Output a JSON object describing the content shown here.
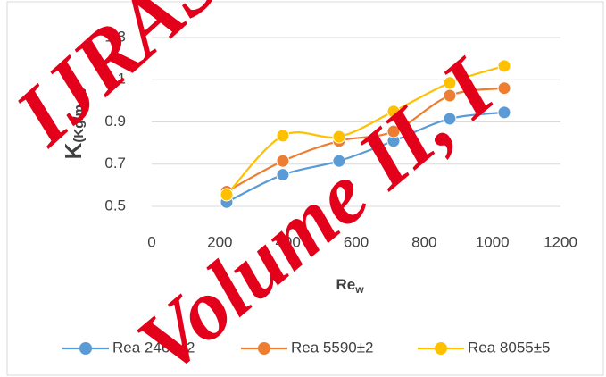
{
  "chart_data": {
    "type": "line",
    "ylabel_parts": [
      "K",
      "(Kg/m",
      "2",
      "s)"
    ],
    "xlabel_parts": [
      "Re",
      "w"
    ],
    "x": [
      220,
      385,
      550,
      710,
      875,
      1035
    ],
    "series": [
      {
        "name": "Rea 2460±2",
        "color": "#5b9bd5",
        "values": [
          0.52,
          0.65,
          0.715,
          0.81,
          0.915,
          0.945
        ]
      },
      {
        "name": "Rea 5590±2",
        "color": "#ed7d31",
        "values": [
          0.57,
          0.715,
          0.81,
          0.855,
          1.025,
          1.06
        ]
      },
      {
        "name": "Rea 8055±5",
        "color": "#ffc000",
        "values": [
          0.555,
          0.835,
          0.83,
          0.95,
          1.085,
          1.165
        ]
      }
    ],
    "xlim": [
      0,
      1200
    ],
    "xticks": [
      0,
      200,
      400,
      600,
      800,
      1000,
      1200
    ],
    "ylim": [
      0.5,
      1.3
    ],
    "yticks": [
      0.5,
      0.7,
      0.9,
      1.1,
      1.3
    ],
    "grid": true,
    "legend": "bottom",
    "watermark": [
      "IJRAS",
      "Volume II, I"
    ]
  }
}
